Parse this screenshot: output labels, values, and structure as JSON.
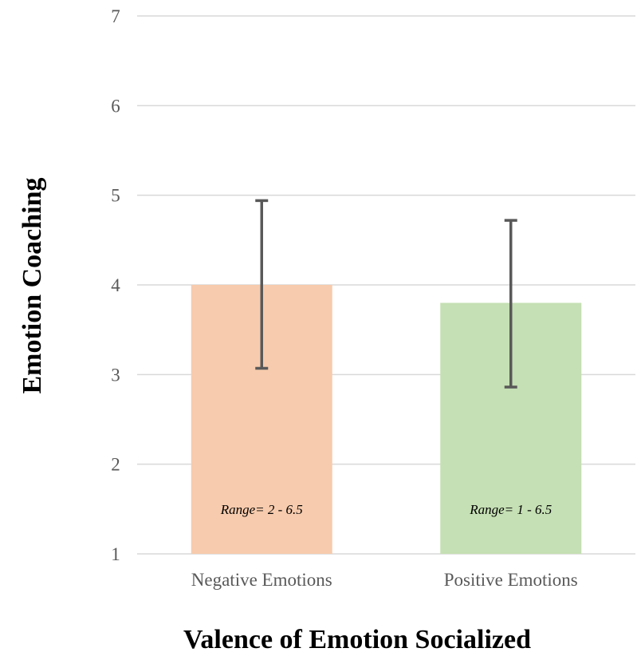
{
  "chart_data": {
    "type": "bar",
    "categories": [
      "Negative Emotions",
      "Positive Emotions"
    ],
    "values": [
      4.0,
      3.8
    ],
    "error_low": [
      3.07,
      2.86
    ],
    "error_high": [
      4.94,
      4.72
    ],
    "annotations": [
      "Range= 2 - 6.5",
      "Range= 1 - 6.5"
    ],
    "xlabel": "Valence of Emotion Socialized",
    "ylabel": "Emotion Coaching",
    "ylim": [
      1,
      7
    ],
    "yticks": [
      "1",
      "2",
      "3",
      "4",
      "5",
      "6",
      "7"
    ],
    "grid": true,
    "colors": {
      "bars": [
        "#f7cbad",
        "#c5e0b4"
      ],
      "error_bar": "#595959",
      "grid": "#d9d9d9"
    }
  }
}
